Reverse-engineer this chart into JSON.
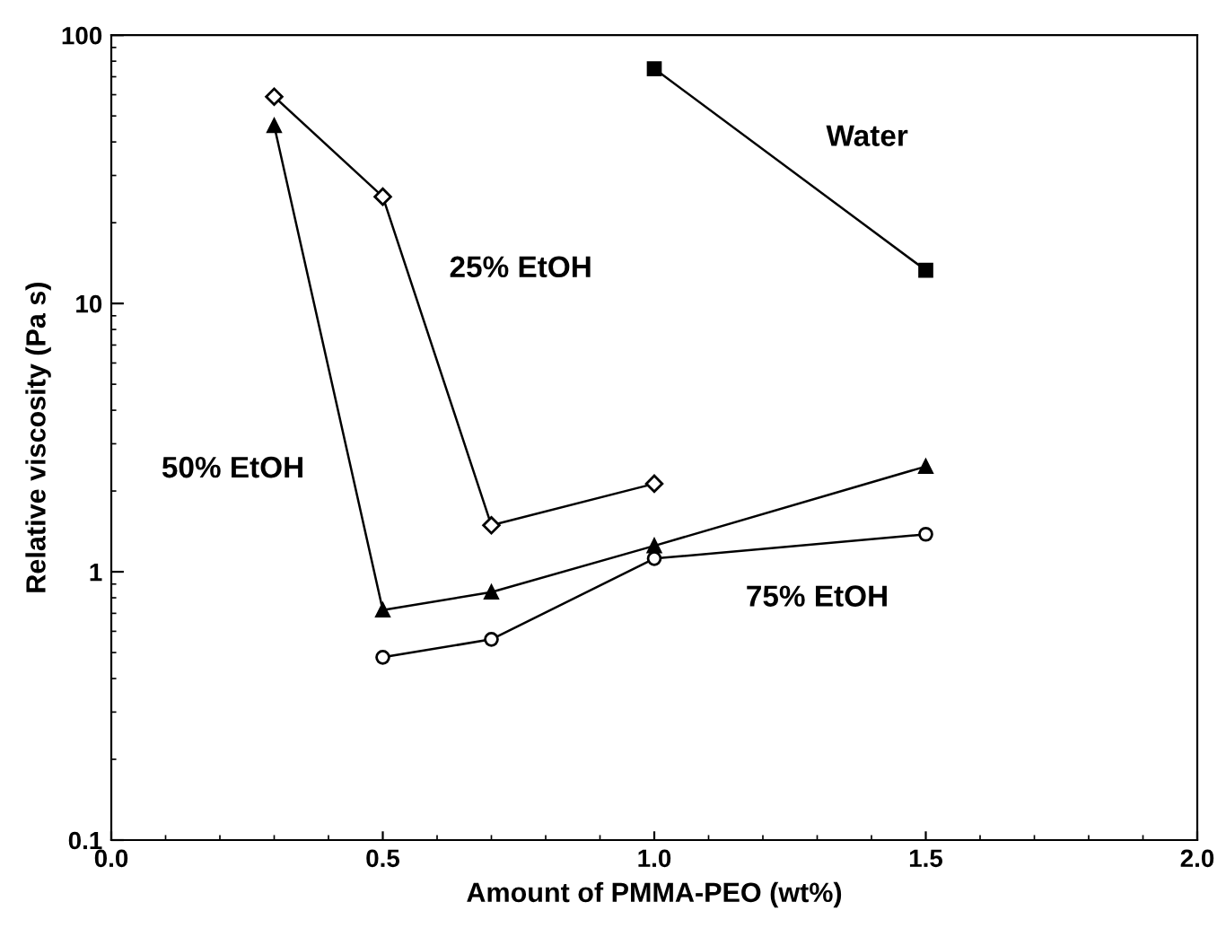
{
  "chart_data": {
    "type": "line",
    "xlabel": "Amount of PMMA-PEO (wt%)",
    "ylabel": "Relative viscosity (Pa s)",
    "log": "y",
    "xlim": [
      0.0,
      2.0
    ],
    "xticks": [
      {
        "value": 0.0,
        "label": "0.0"
      },
      0.5,
      {
        "value": 1.0,
        "label": "1.0"
      },
      1.5,
      {
        "value": 2.0,
        "label": "2.0"
      }
    ],
    "ylim": [
      0.1,
      100
    ],
    "yticks": [
      0.1,
      1,
      10,
      100
    ],
    "grid": false,
    "legend": false,
    "series": [
      {
        "name": "Water",
        "color": "#000000",
        "marker": "square",
        "x": [
          1.0,
          1.5
        ],
        "values": [
          75,
          13.3
        ]
      },
      {
        "name": "25% EtOH",
        "color": "#000000",
        "marker": "diamond",
        "x": [
          0.3,
          0.5,
          0.7,
          1.0
        ],
        "values": [
          59,
          25,
          1.49,
          2.13
        ]
      },
      {
        "name": "50% EtOH",
        "color": "#000000",
        "marker": "triangle",
        "x": [
          0.3,
          0.5,
          0.7,
          1.0,
          1.5
        ],
        "values": [
          46,
          0.72,
          0.84,
          1.25,
          2.47
        ]
      },
      {
        "name": "75% EtOH",
        "color": "#000000",
        "marker": "circle",
        "x": [
          0.5,
          0.7,
          1.0,
          1.5
        ],
        "values": [
          0.48,
          0.56,
          1.12,
          1.38
        ]
      }
    ]
  }
}
